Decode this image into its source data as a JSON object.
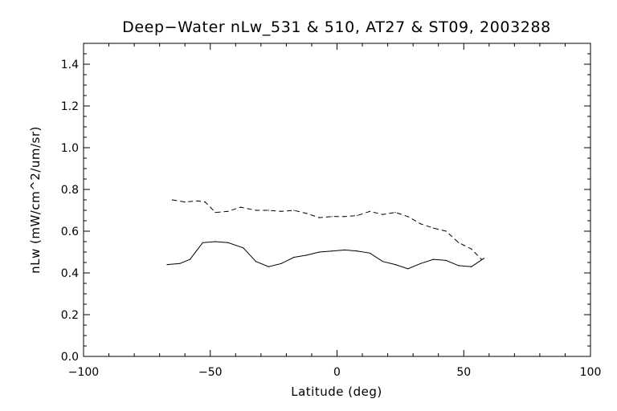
{
  "chart_data": {
    "type": "line",
    "title": "Deep−Water nLw_531 & 510, AT27 & ST09, 2003288",
    "xlabel": "Latitude (deg)",
    "ylabel": "nLw (mW/cm^2/um/sr)",
    "xlim": [
      -100,
      100
    ],
    "ylim": [
      0.0,
      1.5
    ],
    "xticks": [
      -100,
      -50,
      0,
      50,
      100
    ],
    "xtick_labels": [
      "−100",
      "−50",
      "0",
      "50",
      "100"
    ],
    "yticks": [
      0.0,
      0.2,
      0.4,
      0.6,
      0.8,
      1.0,
      1.2,
      1.4
    ],
    "ytick_labels": [
      "0.0",
      "0.2",
      "0.4",
      "0.6",
      "0.8",
      "1.0",
      "1.2",
      "1.4"
    ],
    "grid": false,
    "legend": "none",
    "series": [
      {
        "style": "dashed",
        "color": "#000000",
        "x": [
          -65,
          -60,
          -55,
          -52,
          -48,
          -43,
          -38,
          -32,
          -27,
          -22,
          -17,
          -12,
          -7,
          -2,
          3,
          8,
          13,
          18,
          23,
          28,
          33,
          38,
          43,
          48,
          53,
          57
        ],
        "y": [
          0.75,
          0.74,
          0.745,
          0.74,
          0.69,
          0.695,
          0.715,
          0.7,
          0.7,
          0.695,
          0.7,
          0.685,
          0.665,
          0.67,
          0.67,
          0.675,
          0.695,
          0.68,
          0.69,
          0.67,
          0.635,
          0.615,
          0.6,
          0.545,
          0.515,
          0.465
        ]
      },
      {
        "style": "solid",
        "color": "#000000",
        "x": [
          -67,
          -62,
          -58,
          -53,
          -48,
          -43,
          -37,
          -32,
          -27,
          -22,
          -17,
          -12,
          -7,
          -2,
          3,
          8,
          13,
          18,
          23,
          28,
          33,
          38,
          43,
          48,
          53,
          58
        ],
        "y": [
          0.44,
          0.445,
          0.465,
          0.545,
          0.55,
          0.545,
          0.52,
          0.455,
          0.43,
          0.445,
          0.475,
          0.485,
          0.5,
          0.505,
          0.51,
          0.505,
          0.495,
          0.455,
          0.44,
          0.42,
          0.445,
          0.465,
          0.46,
          0.435,
          0.43,
          0.47
        ]
      }
    ]
  }
}
